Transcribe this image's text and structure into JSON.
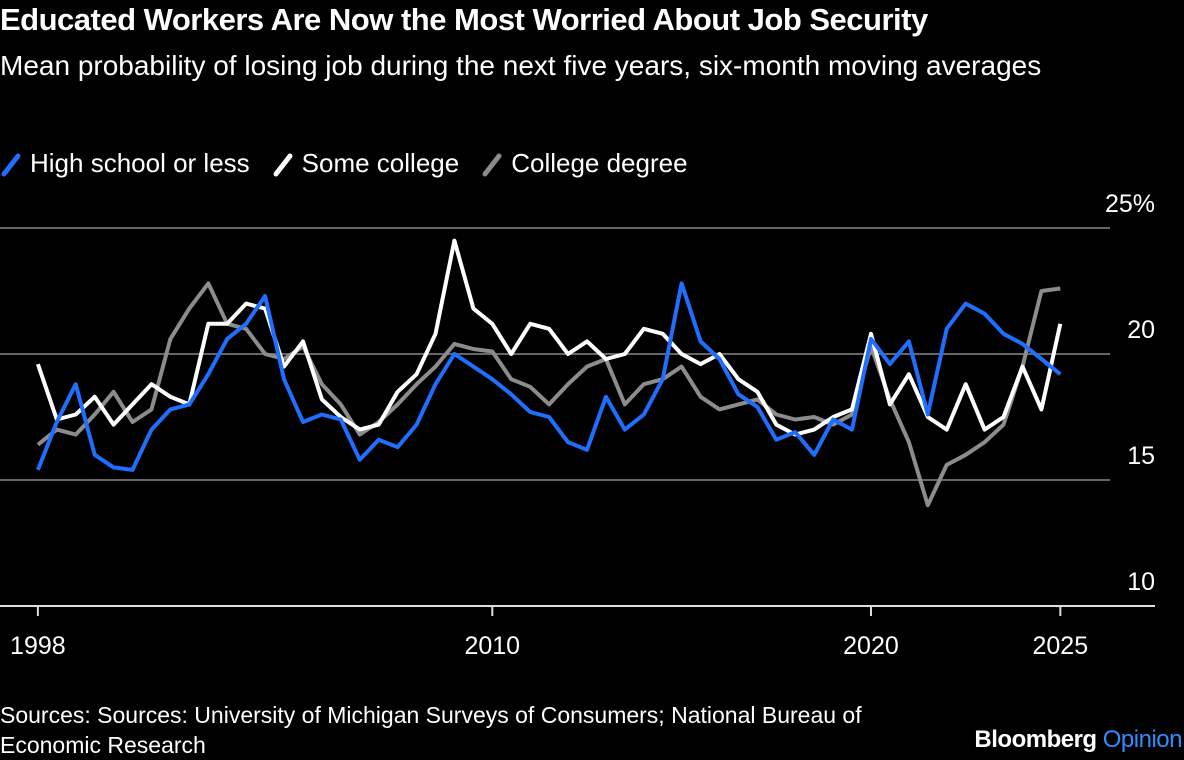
{
  "chart_data": {
    "type": "line",
    "title": "Educated Workers Are Now the Most Worried About Job Security",
    "subtitle": "Mean probability of losing job during the next five years, six-month moving averages",
    "source": "Sources: Sources: University of Michigan Surveys of Consumers; National Bureau of Economic Research",
    "logo": [
      "Bloomberg",
      "Opinion"
    ],
    "x": [
      1998,
      1998.5,
      1999,
      1999.5,
      2000,
      2000.5,
      2001,
      2001.5,
      2002,
      2002.5,
      2003,
      2003.5,
      2004,
      2004.5,
      2005,
      2005.5,
      2006,
      2006.5,
      2007,
      2007.5,
      2008,
      2008.5,
      2009,
      2009.5,
      2010,
      2010.5,
      2011,
      2011.5,
      2012,
      2012.5,
      2013,
      2013.5,
      2014,
      2014.5,
      2015,
      2015.5,
      2016,
      2016.5,
      2017,
      2017.5,
      2018,
      2018.5,
      2019,
      2019.5,
      2020,
      2020.5,
      2021,
      2021.5,
      2022,
      2022.5,
      2023,
      2023.5,
      2024,
      2024.5,
      2025
    ],
    "series": [
      {
        "name": "High school or less",
        "color": "#1f6fff",
        "values": [
          15.4,
          17.3,
          18.8,
          16.0,
          15.5,
          15.4,
          17.0,
          17.8,
          18.0,
          19.2,
          20.6,
          21.2,
          22.3,
          19.0,
          17.3,
          17.6,
          17.4,
          15.8,
          16.6,
          16.3,
          17.2,
          18.8,
          20.0,
          19.5,
          19.0,
          18.4,
          17.7,
          17.5,
          16.5,
          16.2,
          18.3,
          17.0,
          17.6,
          19.0,
          22.8,
          20.5,
          19.8,
          18.4,
          17.9,
          16.6,
          16.9,
          16.0,
          17.4,
          17.0,
          20.6,
          19.6,
          20.5,
          17.6,
          21.0,
          22.0,
          21.6,
          20.8,
          20.4,
          19.8,
          19.2
        ]
      },
      {
        "name": "Some college",
        "color": "#ffffff",
        "values": [
          19.6,
          17.4,
          17.6,
          18.3,
          17.2,
          18.0,
          18.8,
          18.3,
          18.0,
          21.2,
          21.2,
          22.0,
          21.8,
          19.5,
          20.5,
          18.2,
          17.5,
          17.0,
          17.2,
          18.5,
          19.2,
          20.8,
          24.5,
          21.8,
          21.2,
          20.0,
          21.2,
          21.0,
          20.0,
          20.5,
          19.8,
          20.0,
          21.0,
          20.8,
          20.0,
          19.6,
          20.0,
          19.0,
          18.5,
          17.2,
          16.8,
          17.0,
          17.5,
          17.8,
          20.8,
          18.0,
          19.2,
          17.5,
          17.0,
          18.8,
          17.0,
          17.5,
          19.5,
          17.8,
          21.2
        ]
      },
      {
        "name": "College degree",
        "color": "#8c8c8c",
        "values": [
          16.4,
          17.0,
          16.8,
          17.6,
          18.5,
          17.3,
          17.8,
          20.6,
          21.8,
          22.8,
          21.2,
          21.0,
          20.0,
          19.8,
          20.3,
          18.8,
          18.0,
          16.8,
          17.3,
          18.0,
          18.8,
          19.5,
          20.4,
          20.2,
          20.1,
          19.0,
          18.7,
          18.0,
          18.8,
          19.5,
          19.8,
          18.0,
          18.8,
          19.0,
          19.5,
          18.3,
          17.8,
          18.0,
          18.2,
          17.6,
          17.4,
          17.5,
          17.2,
          17.6,
          20.3,
          18.2,
          16.5,
          14.0,
          15.6,
          16.0,
          16.5,
          17.2,
          19.5,
          22.5,
          22.6
        ]
      }
    ],
    "xlim": [
      1997,
      2027.5
    ],
    "xticks": [
      1998,
      2010,
      2020,
      2025
    ],
    "ylim": [
      10,
      25
    ],
    "yticks": [
      10,
      15,
      20,
      {
        "value": 25,
        "label": "25%"
      }
    ],
    "grid": true
  }
}
